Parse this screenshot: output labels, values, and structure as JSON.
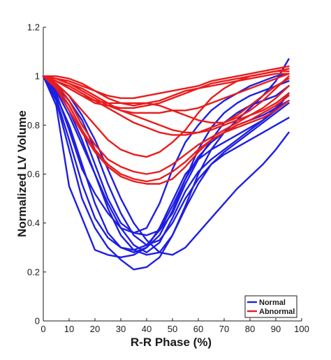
{
  "chart_data": {
    "type": "line",
    "title": "",
    "xlabel": "R-R Phase (%)",
    "ylabel": "Normalized LV Volume",
    "xlim": [
      0,
      100
    ],
    "ylim": [
      0,
      1.2
    ],
    "xticks": [
      "0",
      "10",
      "20",
      "30",
      "40",
      "50",
      "60",
      "70",
      "80",
      "90",
      "100"
    ],
    "yticks": [
      "0",
      "0.2",
      "0.4",
      "0.6",
      "0.8",
      "1",
      "1.2"
    ],
    "grid": false,
    "legend": {
      "placement": "bottom-right",
      "entries": [
        {
          "label": "Normal",
          "color": "#1f1fe0"
        },
        {
          "label": "Abnormal",
          "color": "#e81c1c"
        }
      ]
    },
    "x": [
      0,
      5,
      10,
      15,
      20,
      25,
      30,
      35,
      40,
      45,
      50,
      55,
      60,
      65,
      70,
      75,
      80,
      85,
      90,
      95
    ],
    "series": [
      {
        "group": "Normal",
        "values": [
          1.0,
          0.93,
          0.78,
          0.62,
          0.52,
          0.44,
          0.38,
          0.36,
          0.35,
          0.37,
          0.44,
          0.56,
          0.66,
          0.74,
          0.81,
          0.85,
          0.88,
          0.9,
          0.92,
          0.96
        ]
      },
      {
        "group": "Normal",
        "values": [
          1.0,
          0.95,
          0.88,
          0.78,
          0.64,
          0.5,
          0.4,
          0.36,
          0.38,
          0.48,
          0.62,
          0.73,
          0.8,
          0.86,
          0.9,
          0.93,
          0.96,
          0.98,
          1.0,
          1.01
        ]
      },
      {
        "group": "Normal",
        "values": [
          1.0,
          0.88,
          0.55,
          0.42,
          0.29,
          0.27,
          0.26,
          0.27,
          0.3,
          0.38,
          0.49,
          0.6,
          0.66,
          0.7,
          0.73,
          0.76,
          0.79,
          0.82,
          0.86,
          0.93
        ]
      },
      {
        "group": "Normal",
        "values": [
          1.0,
          0.9,
          0.7,
          0.5,
          0.38,
          0.3,
          0.25,
          0.21,
          0.22,
          0.26,
          0.35,
          0.46,
          0.56,
          0.64,
          0.69,
          0.73,
          0.77,
          0.81,
          0.85,
          0.89
        ]
      },
      {
        "group": "Normal",
        "values": [
          1.0,
          0.94,
          0.84,
          0.72,
          0.6,
          0.48,
          0.38,
          0.31,
          0.28,
          0.32,
          0.42,
          0.53,
          0.61,
          0.66,
          0.7,
          0.74,
          0.78,
          0.82,
          0.87,
          0.93
        ]
      },
      {
        "group": "Normal",
        "values": [
          1.0,
          0.96,
          0.9,
          0.82,
          0.7,
          0.56,
          0.44,
          0.35,
          0.31,
          0.33,
          0.4,
          0.5,
          0.58,
          0.64,
          0.68,
          0.71,
          0.74,
          0.77,
          0.8,
          0.83
        ]
      },
      {
        "group": "Normal",
        "values": [
          1.0,
          0.92,
          0.8,
          0.64,
          0.48,
          0.36,
          0.3,
          0.28,
          0.3,
          0.35,
          0.45,
          0.58,
          0.7,
          0.79,
          0.85,
          0.89,
          0.92,
          0.94,
          0.96,
          0.98
        ]
      },
      {
        "group": "Normal",
        "values": [
          1.0,
          0.97,
          0.92,
          0.84,
          0.74,
          0.62,
          0.5,
          0.4,
          0.33,
          0.28,
          0.27,
          0.3,
          0.36,
          0.42,
          0.48,
          0.54,
          0.59,
          0.64,
          0.7,
          0.77
        ]
      },
      {
        "group": "Normal",
        "values": [
          1.0,
          0.91,
          0.74,
          0.56,
          0.42,
          0.34,
          0.3,
          0.29,
          0.31,
          0.37,
          0.47,
          0.58,
          0.67,
          0.73,
          0.77,
          0.8,
          0.82,
          0.84,
          0.87,
          0.9
        ]
      },
      {
        "group": "Normal",
        "values": [
          1.0,
          0.95,
          0.86,
          0.74,
          0.6,
          0.46,
          0.35,
          0.29,
          0.27,
          0.28,
          0.35,
          0.47,
          0.6,
          0.7,
          0.77,
          0.82,
          0.87,
          0.92,
          0.98,
          1.07
        ]
      },
      {
        "group": "Abnormal",
        "values": [
          1.0,
          0.99,
          0.98,
          0.96,
          0.94,
          0.92,
          0.91,
          0.91,
          0.92,
          0.93,
          0.94,
          0.95,
          0.96,
          0.98,
          0.99,
          1.0,
          1.01,
          1.02,
          1.03,
          1.04
        ]
      },
      {
        "group": "Abnormal",
        "values": [
          1.0,
          0.98,
          0.95,
          0.92,
          0.89,
          0.88,
          0.87,
          0.87,
          0.88,
          0.89,
          0.91,
          0.93,
          0.95,
          0.97,
          0.98,
          0.99,
          1.0,
          1.01,
          1.02,
          1.03
        ]
      },
      {
        "group": "Abnormal",
        "values": [
          1.0,
          0.97,
          0.92,
          0.86,
          0.8,
          0.74,
          0.7,
          0.68,
          0.67,
          0.69,
          0.73,
          0.78,
          0.85,
          0.91,
          0.95,
          0.98,
          1.0,
          1.01,
          1.02,
          1.02
        ]
      },
      {
        "group": "Abnormal",
        "values": [
          1.0,
          0.97,
          0.9,
          0.8,
          0.72,
          0.66,
          0.63,
          0.61,
          0.6,
          0.61,
          0.64,
          0.68,
          0.72,
          0.75,
          0.78,
          0.81,
          0.84,
          0.87,
          0.91,
          0.96
        ]
      },
      {
        "group": "Abnormal",
        "values": [
          1.0,
          0.96,
          0.88,
          0.78,
          0.7,
          0.64,
          0.6,
          0.58,
          0.57,
          0.58,
          0.61,
          0.65,
          0.7,
          0.74,
          0.77,
          0.8,
          0.82,
          0.85,
          0.88,
          0.92
        ]
      },
      {
        "group": "Abnormal",
        "values": [
          1.0,
          0.95,
          0.86,
          0.77,
          0.69,
          0.63,
          0.59,
          0.57,
          0.56,
          0.56,
          0.58,
          0.63,
          0.69,
          0.74,
          0.77,
          0.79,
          0.81,
          0.83,
          0.86,
          0.9
        ]
      },
      {
        "group": "Abnormal",
        "values": [
          1.0,
          1.0,
          0.99,
          0.97,
          0.94,
          0.91,
          0.89,
          0.88,
          0.89,
          0.9,
          0.92,
          0.94,
          0.95,
          0.96,
          0.97,
          0.98,
          0.99,
          1.0,
          1.01,
          1.01
        ]
      },
      {
        "group": "Abnormal",
        "values": [
          1.0,
          0.98,
          0.96,
          0.93,
          0.9,
          0.87,
          0.84,
          0.81,
          0.79,
          0.77,
          0.76,
          0.76,
          0.77,
          0.79,
          0.81,
          0.84,
          0.88,
          0.92,
          0.96,
          0.99
        ]
      },
      {
        "group": "Abnormal",
        "values": [
          1.0,
          0.99,
          0.97,
          0.94,
          0.91,
          0.88,
          0.86,
          0.85,
          0.85,
          0.85,
          0.86,
          0.86,
          0.87,
          0.89,
          0.91,
          0.93,
          0.95,
          0.97,
          0.99,
          1.01
        ]
      },
      {
        "group": "Abnormal",
        "values": [
          1.0,
          0.98,
          0.95,
          0.92,
          0.9,
          0.89,
          0.89,
          0.89,
          0.89,
          0.88,
          0.86,
          0.84,
          0.82,
          0.81,
          0.81,
          0.83,
          0.86,
          0.9,
          0.95,
          1.0
        ]
      },
      {
        "group": "Abnormal",
        "values": [
          1.0,
          0.99,
          0.97,
          0.95,
          0.92,
          0.89,
          0.86,
          0.84,
          0.82,
          0.8,
          0.78,
          0.77,
          0.77,
          0.78,
          0.8,
          0.82,
          0.84,
          0.86,
          0.89,
          0.93
        ]
      }
    ]
  }
}
